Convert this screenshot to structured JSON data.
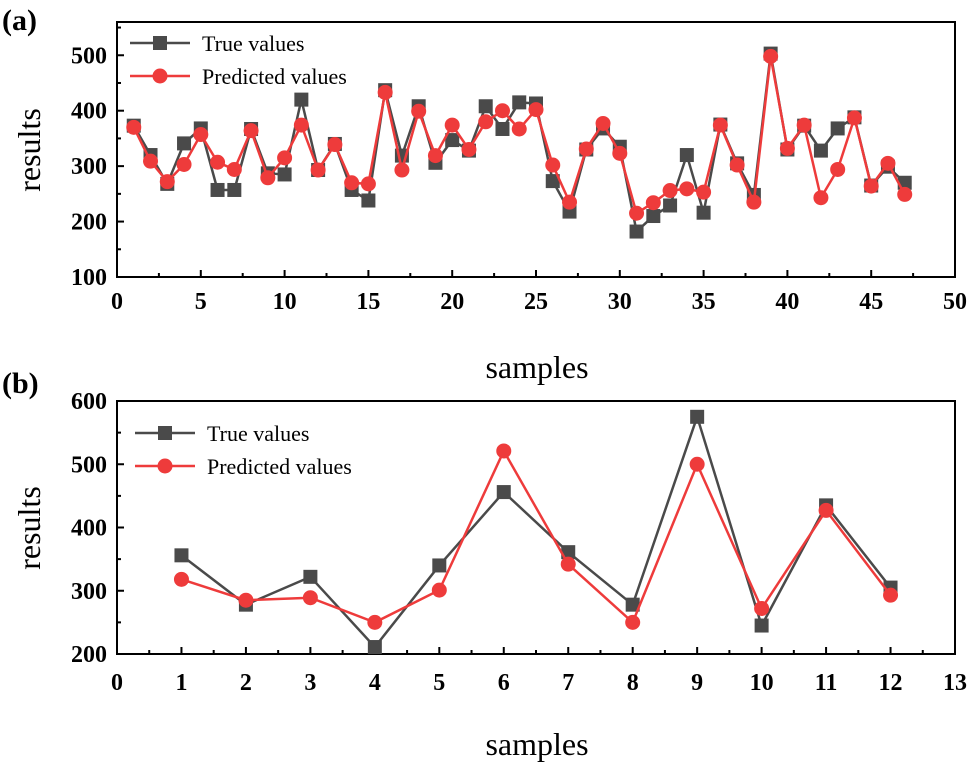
{
  "chart_data": [
    {
      "type": "line",
      "panel_label": "(a)",
      "xlabel": "samples",
      "ylabel": "results",
      "xlim": [
        0,
        50
      ],
      "ylim": [
        100,
        560
      ],
      "xticks": [
        0,
        5,
        10,
        15,
        20,
        25,
        30,
        35,
        40,
        45,
        50
      ],
      "yticks": [
        100,
        200,
        300,
        400,
        500
      ],
      "grid": false,
      "legend_position": "top-left",
      "x": [
        1,
        2,
        3,
        4,
        5,
        6,
        7,
        8,
        9,
        10,
        11,
        12,
        13,
        14,
        15,
        16,
        17,
        18,
        19,
        20,
        21,
        22,
        23,
        24,
        25,
        26,
        27,
        28,
        29,
        30,
        31,
        32,
        33,
        34,
        35,
        36,
        37,
        38,
        39,
        40,
        41,
        42,
        43,
        44,
        45,
        46,
        47
      ],
      "series": [
        {
          "name": "True values",
          "color": "#4a4a4a",
          "marker": "square",
          "values": [
            373,
            320,
            268,
            341,
            368,
            257,
            257,
            367,
            287,
            285,
            420,
            293,
            340,
            257,
            238,
            437,
            319,
            408,
            306,
            347,
            328,
            408,
            367,
            415,
            413,
            273,
            218,
            330,
            368,
            335,
            182,
            210,
            229,
            320,
            216,
            375,
            305,
            248,
            503,
            330,
            373,
            328,
            368,
            388,
            265,
            299,
            270
          ]
        },
        {
          "name": "Predicted values",
          "color": "#ee3b3b",
          "marker": "circle",
          "values": [
            370,
            309,
            272,
            303,
            357,
            307,
            294,
            364,
            279,
            315,
            374,
            293,
            339,
            270,
            268,
            433,
            293,
            399,
            319,
            374,
            330,
            380,
            400,
            367,
            402,
            302,
            235,
            331,
            377,
            323,
            215,
            234,
            256,
            259,
            253,
            374,
            302,
            235,
            498,
            332,
            374,
            243,
            294,
            387,
            264,
            305,
            249
          ]
        }
      ]
    },
    {
      "type": "line",
      "panel_label": "(b)",
      "xlabel": "samples",
      "ylabel": "results",
      "xlim": [
        0,
        13
      ],
      "ylim": [
        200,
        600
      ],
      "xticks": [
        0,
        1,
        2,
        3,
        4,
        5,
        6,
        7,
        8,
        9,
        10,
        11,
        12,
        13
      ],
      "yticks": [
        200,
        300,
        400,
        500,
        600
      ],
      "grid": false,
      "legend_position": "top-left",
      "x": [
        1,
        2,
        3,
        4,
        5,
        6,
        7,
        8,
        9,
        10,
        11,
        12
      ],
      "series": [
        {
          "name": "True values",
          "color": "#4a4a4a",
          "marker": "square",
          "values": [
            356,
            278,
            322,
            211,
            340,
            456,
            361,
            278,
            575,
            245,
            435,
            305
          ]
        },
        {
          "name": "Predicted values",
          "color": "#ee3b3b",
          "marker": "circle",
          "values": [
            318,
            285,
            289,
            250,
            301,
            521,
            342,
            250,
            500,
            272,
            427,
            293
          ]
        }
      ]
    }
  ]
}
